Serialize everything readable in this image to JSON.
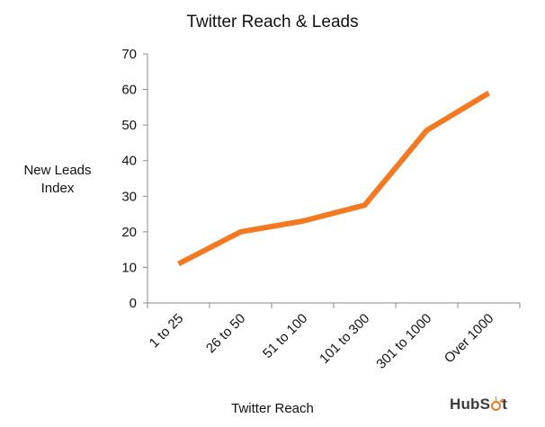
{
  "chart_data": {
    "type": "line",
    "title": "Twitter Reach & Leads",
    "xlabel": "Twitter Reach",
    "ylabel": "New Leads\nIndex",
    "categories": [
      "1 to 25",
      "26 to 50",
      "51 to 100",
      "101 to 300",
      "301 to 1000",
      "Over 1000"
    ],
    "series": [
      {
        "values": [
          11,
          20,
          23,
          27.5,
          48.5,
          59
        ],
        "color": "#f47920"
      }
    ],
    "ylim": [
      0,
      70
    ],
    "yticks": [
      0,
      10,
      20,
      30,
      40,
      50,
      60,
      70
    ],
    "grid": false,
    "legend": "none"
  },
  "logo": {
    "prefix": "HubS",
    "suffix": "t"
  }
}
